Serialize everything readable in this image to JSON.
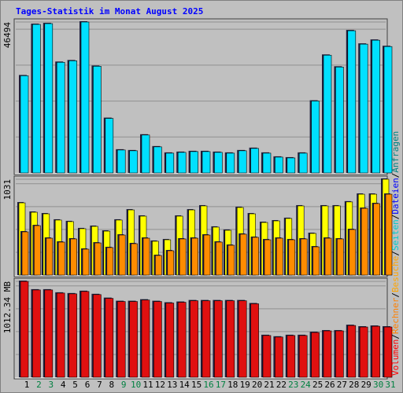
{
  "title": "Tages-Statistik im Monat August 2025",
  "side_legend": {
    "separator": "/",
    "items": [
      {
        "text": "Volumen",
        "color": "#ff0000"
      },
      {
        "text": "Rechner",
        "color": "#ff8000"
      },
      {
        "text": "Besuche",
        "color": "#ffa500"
      },
      {
        "text": "Seiten",
        "color": "#00cccc"
      },
      {
        "text": "Dateien",
        "color": "#0000ff"
      },
      {
        "text": "Anfragen",
        "color": "#008080"
      }
    ]
  },
  "chart_data": [
    {
      "type": "bar",
      "ylim": [
        0,
        46494
      ],
      "yticks": [
        46494
      ],
      "series": [
        {
          "name": "Anfragen",
          "color": "#00e0ff",
          "values": [
            29940,
            45760,
            46000,
            34080,
            34560,
            46494,
            32860,
            16800,
            7060,
            6820,
            11680,
            8030,
            6090,
            6330,
            6570,
            6570,
            6330,
            6090,
            6820,
            7550,
            6090,
            4870,
            4620,
            6090,
            22150,
            36270,
            32620,
            43810,
            39680,
            40890,
            38940
          ]
        }
      ]
    },
    {
      "type": "bar",
      "ylim": [
        0,
        1031
      ],
      "yticks": [
        1031
      ],
      "series": [
        {
          "name": "Besuche",
          "color": "#ffff00",
          "values": [
            777,
            676,
            659,
            592,
            575,
            499,
            524,
            473,
            592,
            701,
            634,
            364,
            380,
            634,
            701,
            744,
            516,
            482,
            727,
            659,
            566,
            583,
            609,
            744,
            448,
            744,
            744,
            787,
            870,
            870,
            1031
          ]
        },
        {
          "name": "Rechner",
          "color": "#ff8c00",
          "values": [
            465,
            532,
            397,
            355,
            389,
            279,
            346,
            296,
            431,
            338,
            397,
            211,
            262,
            389,
            397,
            431,
            355,
            321,
            440,
            406,
            380,
            397,
            380,
            389,
            304,
            397,
            389,
            490,
            718,
            769,
            870
          ]
        }
      ]
    },
    {
      "type": "bar",
      "ylim": [
        0,
        1012.34
      ],
      "yticks": [
        {
          "value": 1012.34,
          "label": "1012.34 MB"
        }
      ],
      "categories": [
        "1",
        "2",
        "3",
        "4",
        "5",
        "6",
        "7",
        "8",
        "9",
        "10",
        "11",
        "12",
        "13",
        "14",
        "15",
        "16",
        "17",
        "18",
        "19",
        "20",
        "21",
        "22",
        "23",
        "24",
        "25",
        "26",
        "27",
        "28",
        "29",
        "30",
        "31"
      ],
      "category_colors": [
        "#000000",
        "#008040",
        "#008040",
        "#000000",
        "#000000",
        "#000000",
        "#000000",
        "#000000",
        "#008040",
        "#008040",
        "#000000",
        "#000000",
        "#000000",
        "#000000",
        "#000000",
        "#008040",
        "#008040",
        "#000000",
        "#000000",
        "#000000",
        "#000000",
        "#000000",
        "#008040",
        "#008040",
        "#000000",
        "#000000",
        "#000000",
        "#000000",
        "#000000",
        "#008040",
        "#008040"
      ],
      "series": [
        {
          "name": "Volumen",
          "color": "#e01010",
          "values": [
            1012.34,
            922,
            922,
            889,
            881,
            906,
            873,
            833,
            800,
            800,
            816,
            800,
            784,
            792,
            808,
            808,
            808,
            808,
            808,
            776,
            441,
            425,
            441,
            441,
            473,
            490,
            490,
            547,
            531,
            539,
            531
          ]
        }
      ]
    }
  ]
}
